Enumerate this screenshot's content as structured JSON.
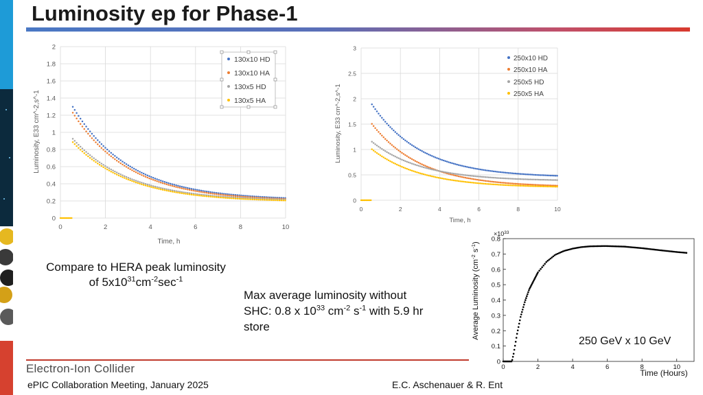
{
  "slide": {
    "title": "Luminosity ep for Phase-1",
    "hera_note": {
      "line1": "Compare to HERA peak luminosity",
      "line2_pre": "of 5x10",
      "sup1": "31",
      "mid1": "cm",
      "sup2": "-2",
      "mid2": "sec",
      "sup3": "-1"
    },
    "shc_note": {
      "line1": "Max average luminosity without",
      "pre": "SHC: 0.8 x 10",
      "sup1": "33",
      "mid1": " cm",
      "sup2": "-2",
      "mid2": " s",
      "sup3": "-1",
      "post": " with 5.9 hr",
      "line3": "store"
    },
    "energy_label": "250 GeV x 10 GeV",
    "footer": {
      "logo_text": "Electron-Ion Collider",
      "left": "ePIC Collaboration Meeting, January 2025",
      "right": "E.C. Aschenauer & R. Ent"
    }
  },
  "colors": {
    "blue": "#4472c4",
    "orange": "#ed7d31",
    "gray": "#a5a5a5",
    "yellow": "#ffc000",
    "grid": "#d9d9d9",
    "axis_text": "#595959"
  },
  "chart_data": [
    {
      "type": "scatter",
      "title": "",
      "xlabel": "Time, h",
      "ylabel": "Luminosity, E33 cm^-2,s^-1",
      "xlim": [
        0,
        10
      ],
      "ylim": [
        0,
        2
      ],
      "xticks": [
        "0",
        "2",
        "4",
        "6",
        "8",
        "10"
      ],
      "yticks": [
        "0",
        "0.2",
        "0.4",
        "0.6",
        "0.8",
        "1",
        "1.2",
        "1.4",
        "1.6",
        "1.8",
        "2"
      ],
      "legend_position": "top-right",
      "setup_end_h": 0.5,
      "series": [
        {
          "name": "130x10 HD",
          "color": "#4472c4",
          "start": 1.32,
          "end": 0.21
        },
        {
          "name": "130x10 HA",
          "color": "#ed7d31",
          "start": 1.25,
          "end": 0.2
        },
        {
          "name": "130x5 HD",
          "color": "#a5a5a5",
          "start": 0.94,
          "end": 0.2
        },
        {
          "name": "130x5 HA",
          "color": "#ffc000",
          "start": 0.9,
          "end": 0.19
        }
      ]
    },
    {
      "type": "scatter",
      "title": "",
      "xlabel": "Time, h",
      "ylabel": "Luminosity, E33 cm^-2,s^-1",
      "xlim": [
        0,
        10
      ],
      "ylim": [
        0,
        3
      ],
      "xticks": [
        "0",
        "2",
        "4",
        "6",
        "8",
        "10"
      ],
      "yticks": [
        "0",
        "0.5",
        "1",
        "1.5",
        "2",
        "2.5",
        "3"
      ],
      "legend_position": "top-right",
      "setup_end_h": 0.5,
      "series": [
        {
          "name": "250x10 HD",
          "color": "#4472c4",
          "start": 1.92,
          "end": 0.45
        },
        {
          "name": "250x10 HA",
          "color": "#ed7d31",
          "start": 1.53,
          "end": 0.26
        },
        {
          "name": "250x5 HD",
          "color": "#a5a5a5",
          "start": 1.17,
          "end": 0.38
        },
        {
          "name": "250x5 HA",
          "color": "#ffc000",
          "start": 1.02,
          "end": 0.25
        }
      ]
    },
    {
      "type": "scatter",
      "title": "",
      "xlabel": "Time (Hours)",
      "ylabel": "Average Luminosity (cm^-2 s^-1)",
      "ylabel_main": "Average Luminosity (cm",
      "ylabel_sup1": "-2",
      "ylabel_mid": " s",
      "ylabel_sup2": "-1",
      "ylabel_close": ")",
      "scale_label": "×10",
      "scale_sup": "33",
      "xlim": [
        0,
        11
      ],
      "ylim": [
        0,
        0.8
      ],
      "xticks": [
        "0",
        "2",
        "4",
        "6",
        "8",
        "10"
      ],
      "yticks": [
        "0",
        "0.1",
        "0.2",
        "0.3",
        "0.4",
        "0.5",
        "0.6",
        "0.7",
        "0.8"
      ],
      "points": [
        [
          0.0,
          0
        ],
        [
          0.5,
          0
        ],
        [
          0.6,
          0.05
        ],
        [
          0.8,
          0.18
        ],
        [
          1.0,
          0.29
        ],
        [
          1.25,
          0.39
        ],
        [
          1.5,
          0.47
        ],
        [
          2.0,
          0.58
        ],
        [
          2.5,
          0.65
        ],
        [
          3.0,
          0.695
        ],
        [
          3.5,
          0.72
        ],
        [
          4.0,
          0.735
        ],
        [
          4.5,
          0.745
        ],
        [
          5.0,
          0.75
        ],
        [
          5.9,
          0.752
        ],
        [
          7.0,
          0.748
        ],
        [
          8.0,
          0.738
        ],
        [
          9.0,
          0.725
        ],
        [
          10.0,
          0.713
        ],
        [
          10.6,
          0.707
        ]
      ]
    }
  ]
}
